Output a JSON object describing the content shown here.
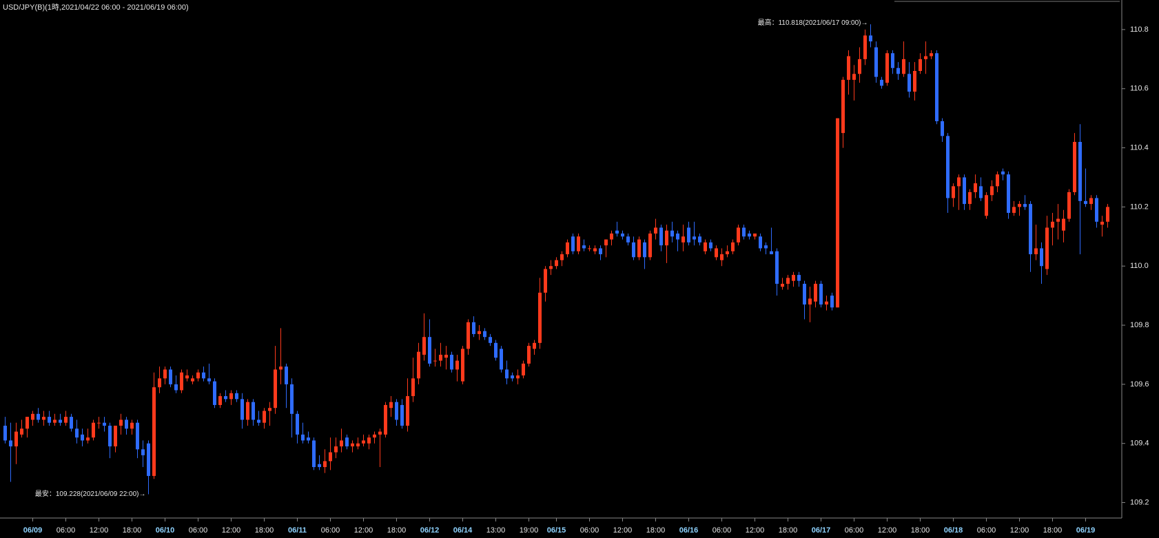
{
  "chart_data": {
    "type": "candlestick",
    "title": "USD/JPY(B)(1時,2021/04/22 06:00 - 2021/06/19 06:00)",
    "annotations": [
      "最高：110.818(2021/06/17 09:00)→",
      "最安：109.228(2021/06/09 22:00)→"
    ],
    "up_color": "#ff3a1c",
    "down_color": "#2f6cff",
    "ylim": [
      109.15,
      110.9
    ],
    "yticks": [
      109.2,
      109.4,
      109.6,
      109.8,
      {
        "value": 110,
        "label": "110.0"
      },
      110.2,
      110.4,
      110.6,
      110.8
    ],
    "categories": [
      null,
      null,
      null,
      null,
      null,
      "06/09",
      null,
      null,
      null,
      null,
      null,
      "06:00",
      null,
      null,
      null,
      null,
      null,
      "12:00",
      null,
      null,
      null,
      null,
      null,
      "18:00",
      null,
      null,
      null,
      null,
      null,
      "06/10",
      null,
      null,
      null,
      null,
      null,
      "06:00",
      null,
      null,
      null,
      null,
      null,
      "12:00",
      null,
      null,
      null,
      null,
      null,
      "18:00",
      null,
      null,
      null,
      null,
      null,
      "06/11",
      null,
      null,
      null,
      null,
      null,
      "06:00",
      null,
      null,
      null,
      null,
      null,
      "12:00",
      null,
      null,
      null,
      null,
      null,
      "18:00",
      null,
      null,
      null,
      null,
      null,
      "06/12",
      null,
      null,
      null,
      null,
      null,
      "06/14",
      null,
      null,
      null,
      null,
      null,
      "13:00",
      null,
      null,
      null,
      null,
      null,
      "19:00",
      null,
      null,
      null,
      null,
      "06/15",
      null,
      null,
      null,
      null,
      null,
      "06:00",
      null,
      null,
      null,
      null,
      null,
      "12:00",
      null,
      null,
      null,
      null,
      null,
      "18:00",
      null,
      null,
      null,
      null,
      null,
      "06/16",
      null,
      null,
      null,
      null,
      null,
      "06:00",
      null,
      null,
      null,
      null,
      null,
      "12:00",
      null,
      null,
      null,
      null,
      null,
      "18:00",
      null,
      null,
      null,
      null,
      null,
      "06/17",
      null,
      null,
      null,
      null,
      null,
      "06:00",
      null,
      null,
      null,
      null,
      null,
      "12:00",
      null,
      null,
      null,
      null,
      null,
      "18:00",
      null,
      null,
      null,
      null,
      null,
      "06/18",
      null,
      null,
      null,
      null,
      null,
      "06:00",
      null,
      null,
      null,
      null,
      null,
      "12:00",
      null,
      null,
      null,
      null,
      null,
      "18:00",
      null,
      null,
      null,
      null,
      null,
      "06/19",
      null,
      null,
      null,
      null
    ],
    "candles": [
      [
        109.46,
        109.49,
        109.4,
        109.41
      ],
      [
        109.41,
        109.47,
        109.27,
        109.39
      ],
      [
        109.39,
        109.47,
        109.33,
        109.44
      ],
      [
        109.43,
        109.48,
        109.42,
        109.45
      ],
      [
        109.45,
        109.49,
        109.42,
        109.49
      ],
      [
        109.48,
        109.51,
        109.46,
        109.5
      ],
      [
        109.5,
        109.52,
        109.47,
        109.48
      ],
      [
        109.48,
        109.51,
        109.46,
        109.49
      ],
      [
        109.49,
        109.51,
        109.46,
        109.47
      ],
      [
        109.47,
        109.5,
        109.46,
        109.48
      ],
      [
        109.48,
        109.5,
        109.46,
        109.47
      ],
      [
        109.47,
        109.51,
        109.46,
        109.49
      ],
      [
        109.49,
        109.5,
        109.44,
        109.45
      ],
      [
        109.45,
        109.48,
        109.4,
        109.42
      ],
      [
        109.43,
        109.45,
        109.39,
        109.41
      ],
      [
        109.41,
        109.45,
        109.4,
        109.42
      ],
      [
        109.42,
        109.48,
        109.41,
        109.47
      ],
      [
        109.47,
        109.49,
        109.45,
        109.47
      ],
      [
        109.47,
        109.49,
        109.44,
        109.46
      ],
      [
        109.46,
        109.47,
        109.35,
        109.39
      ],
      [
        109.39,
        109.46,
        109.37,
        109.46
      ],
      [
        109.46,
        109.5,
        109.43,
        109.48
      ],
      [
        109.48,
        109.49,
        109.43,
        109.45
      ],
      [
        109.45,
        109.48,
        109.43,
        109.47
      ],
      [
        109.47,
        109.48,
        109.35,
        109.38
      ],
      [
        109.38,
        109.41,
        109.32,
        109.36
      ],
      [
        109.4,
        109.41,
        109.228,
        109.29
      ],
      [
        109.29,
        109.64,
        109.28,
        109.59
      ],
      [
        109.59,
        109.66,
        109.57,
        109.62
      ],
      [
        109.62,
        109.66,
        109.6,
        109.65
      ],
      [
        109.65,
        109.66,
        109.59,
        109.6
      ],
      [
        109.6,
        109.63,
        109.57,
        109.58
      ],
      [
        109.58,
        109.65,
        109.57,
        109.64
      ],
      [
        109.62,
        109.65,
        109.61,
        109.63
      ],
      [
        109.61,
        109.63,
        109.6,
        109.62
      ],
      [
        109.62,
        109.65,
        109.61,
        109.64
      ],
      [
        109.64,
        109.66,
        109.61,
        109.62
      ],
      [
        109.62,
        109.67,
        109.6,
        109.61
      ],
      [
        109.61,
        109.62,
        109.52,
        109.53
      ],
      [
        109.53,
        109.57,
        109.52,
        109.56
      ],
      [
        109.56,
        109.58,
        109.54,
        109.55
      ],
      [
        109.55,
        109.58,
        109.53,
        109.57
      ],
      [
        109.57,
        109.58,
        109.54,
        109.55
      ],
      [
        109.55,
        109.57,
        109.45,
        109.48
      ],
      [
        109.48,
        109.55,
        109.46,
        109.54
      ],
      [
        109.54,
        109.55,
        109.46,
        109.48
      ],
      [
        109.48,
        109.51,
        109.46,
        109.47
      ],
      [
        109.47,
        109.52,
        109.45,
        109.51
      ],
      [
        109.51,
        109.54,
        109.46,
        109.52
      ],
      [
        109.52,
        109.73,
        109.5,
        109.65
      ],
      [
        109.65,
        109.79,
        109.6,
        109.66
      ],
      [
        109.66,
        109.67,
        109.52,
        109.6
      ],
      [
        109.6,
        109.62,
        109.42,
        109.5
      ],
      [
        109.5,
        109.51,
        109.4,
        109.43
      ],
      [
        109.43,
        109.47,
        109.4,
        109.41
      ],
      [
        109.42,
        109.44,
        109.4,
        109.41
      ],
      [
        109.41,
        109.42,
        109.31,
        109.32
      ],
      [
        109.33,
        109.36,
        109.31,
        109.32
      ],
      [
        109.32,
        109.38,
        109.3,
        109.34
      ],
      [
        109.34,
        109.42,
        109.31,
        109.37
      ],
      [
        109.37,
        109.42,
        109.35,
        109.39
      ],
      [
        109.39,
        109.45,
        109.37,
        109.41
      ],
      [
        109.42,
        109.43,
        109.38,
        109.39
      ],
      [
        109.39,
        109.41,
        109.37,
        109.4
      ],
      [
        109.39,
        109.42,
        109.38,
        109.4
      ],
      [
        109.4,
        109.43,
        109.39,
        109.41
      ],
      [
        109.4,
        109.43,
        109.38,
        109.42
      ],
      [
        109.42,
        109.44,
        109.4,
        109.43
      ],
      [
        109.43,
        109.45,
        109.32,
        109.44
      ],
      [
        109.43,
        109.54,
        109.42,
        109.53
      ],
      [
        109.52,
        109.56,
        109.49,
        109.54
      ],
      [
        109.54,
        109.55,
        109.46,
        109.48
      ],
      [
        109.53,
        109.55,
        109.45,
        109.46
      ],
      [
        109.46,
        109.62,
        109.44,
        109.56
      ],
      [
        109.56,
        109.69,
        109.54,
        109.62
      ],
      [
        109.62,
        109.74,
        109.6,
        109.71
      ],
      [
        109.7,
        109.84,
        109.68,
        109.76
      ],
      [
        109.76,
        109.82,
        109.66,
        109.67
      ],
      [
        109.68,
        109.72,
        109.66,
        109.68
      ],
      [
        109.68,
        109.74,
        109.66,
        109.7
      ],
      [
        109.69,
        109.73,
        109.65,
        109.7
      ],
      [
        109.7,
        109.71,
        109.64,
        109.65
      ],
      [
        109.65,
        109.7,
        109.61,
        109.68
      ],
      [
        109.61,
        109.73,
        109.6,
        109.72
      ],
      [
        109.72,
        109.82,
        109.7,
        109.81
      ],
      [
        109.81,
        109.83,
        109.76,
        109.77
      ],
      [
        109.77,
        109.8,
        109.75,
        109.78
      ],
      [
        109.78,
        109.79,
        109.75,
        109.76
      ],
      [
        109.76,
        109.77,
        109.73,
        109.74
      ],
      [
        109.74,
        109.75,
        109.68,
        109.69
      ],
      [
        109.72,
        109.73,
        109.64,
        109.65
      ],
      [
        109.65,
        109.68,
        109.6,
        109.62
      ],
      [
        109.63,
        109.64,
        109.61,
        109.62
      ],
      [
        109.62,
        109.65,
        109.6,
        109.63
      ],
      [
        109.63,
        109.68,
        109.62,
        109.67
      ],
      [
        109.67,
        109.74,
        109.66,
        109.73
      ],
      [
        109.72,
        109.75,
        109.7,
        109.74
      ],
      [
        109.74,
        109.96,
        109.72,
        109.91
      ],
      [
        109.91,
        110.0,
        109.88,
        109.99
      ],
      [
        109.99,
        110.02,
        109.97,
        110.0
      ],
      [
        110.0,
        110.03,
        109.99,
        110.02
      ],
      [
        110.02,
        110.05,
        110.0,
        110.04
      ],
      [
        110.04,
        110.09,
        110.03,
        110.08
      ],
      [
        110.1,
        110.11,
        110.04,
        110.05
      ],
      [
        110.05,
        110.11,
        110.04,
        110.1
      ],
      [
        110.07,
        110.09,
        110.05,
        110.06
      ],
      [
        110.06,
        110.07,
        110.05,
        110.06
      ],
      [
        110.05,
        110.07,
        110.04,
        110.06
      ],
      [
        110.06,
        110.07,
        110.02,
        110.04
      ],
      [
        110.07,
        110.09,
        110.03,
        110.09
      ],
      [
        110.09,
        110.12,
        110.07,
        110.11
      ],
      [
        110.12,
        110.15,
        110.1,
        110.11
      ],
      [
        110.11,
        110.12,
        110.09,
        110.1
      ],
      [
        110.1,
        110.11,
        110.07,
        110.08
      ],
      [
        110.08,
        110.1,
        110.02,
        110.03
      ],
      [
        110.03,
        110.1,
        110.02,
        110.09
      ],
      [
        110.08,
        110.09,
        109.99,
        110.03
      ],
      [
        110.03,
        110.12,
        110.02,
        110.11
      ],
      [
        110.11,
        110.16,
        110.09,
        110.13
      ],
      [
        110.13,
        110.14,
        110.05,
        110.07
      ],
      [
        110.07,
        110.14,
        110.01,
        110.12
      ],
      [
        110.12,
        110.15,
        110.08,
        110.1
      ],
      [
        110.11,
        110.12,
        110.05,
        110.09
      ],
      [
        110.08,
        110.14,
        110.05,
        110.1
      ],
      [
        110.13,
        110.15,
        110.07,
        110.08
      ],
      [
        110.1,
        110.15,
        110.07,
        110.09
      ],
      [
        110.1,
        110.11,
        110.07,
        110.08
      ],
      [
        110.05,
        110.09,
        110.04,
        110.08
      ],
      [
        110.08,
        110.09,
        110.05,
        110.06
      ],
      [
        110.03,
        110.07,
        110.02,
        110.06
      ],
      [
        110.02,
        110.06,
        110.0,
        110.04
      ],
      [
        110.04,
        110.07,
        110.03,
        110.05
      ],
      [
        110.05,
        110.09,
        110.04,
        110.08
      ],
      [
        110.08,
        110.14,
        110.07,
        110.13
      ],
      [
        110.13,
        110.14,
        110.09,
        110.1
      ],
      [
        110.11,
        110.12,
        110.09,
        110.1
      ],
      [
        110.1,
        110.11,
        110.09,
        110.11
      ],
      [
        110.1,
        110.11,
        110.05,
        110.06
      ],
      [
        110.07,
        110.08,
        110.04,
        110.06
      ],
      [
        110.05,
        110.13,
        110.04,
        110.04
      ],
      [
        110.05,
        110.06,
        109.9,
        109.94
      ],
      [
        109.93,
        109.96,
        109.92,
        109.94
      ],
      [
        109.94,
        109.97,
        109.92,
        109.96
      ],
      [
        109.95,
        109.98,
        109.93,
        109.97
      ],
      [
        109.97,
        109.98,
        109.93,
        109.95
      ],
      [
        109.94,
        109.95,
        109.82,
        109.87
      ],
      [
        109.87,
        109.93,
        109.81,
        109.89
      ],
      [
        109.88,
        109.95,
        109.86,
        109.94
      ],
      [
        109.94,
        109.95,
        109.86,
        109.87
      ],
      [
        109.87,
        109.9,
        109.85,
        109.88
      ],
      [
        109.9,
        109.91,
        109.85,
        109.86
      ],
      [
        109.86,
        110.5,
        109.86,
        110.5
      ],
      [
        110.45,
        110.64,
        110.4,
        110.63
      ],
      [
        110.63,
        110.73,
        110.58,
        110.71
      ],
      [
        110.63,
        110.68,
        110.56,
        110.65
      ],
      [
        110.65,
        110.74,
        110.62,
        110.7
      ],
      [
        110.7,
        110.8,
        110.68,
        110.78
      ],
      [
        110.78,
        110.818,
        110.74,
        110.76
      ],
      [
        110.74,
        110.76,
        110.62,
        110.64
      ],
      [
        110.63,
        110.64,
        110.6,
        110.61
      ],
      [
        110.62,
        110.73,
        110.61,
        110.72
      ],
      [
        110.72,
        110.73,
        110.65,
        110.67
      ],
      [
        110.67,
        110.69,
        110.63,
        110.65
      ],
      [
        110.65,
        110.76,
        110.64,
        110.7
      ],
      [
        110.65,
        110.69,
        110.57,
        110.59
      ],
      [
        110.59,
        110.69,
        110.56,
        110.66
      ],
      [
        110.66,
        110.72,
        110.65,
        110.7
      ],
      [
        110.7,
        110.76,
        110.65,
        110.71
      ],
      [
        110.71,
        110.73,
        110.7,
        110.72
      ],
      [
        110.72,
        110.73,
        110.48,
        110.49
      ],
      [
        110.49,
        110.5,
        110.42,
        110.44
      ],
      [
        110.44,
        110.45,
        110.18,
        110.23
      ],
      [
        110.23,
        110.28,
        110.2,
        110.27
      ],
      [
        110.27,
        110.31,
        110.19,
        110.3
      ],
      [
        110.3,
        110.31,
        110.19,
        110.21
      ],
      [
        110.21,
        110.26,
        110.19,
        110.25
      ],
      [
        110.25,
        110.31,
        110.23,
        110.28
      ],
      [
        110.27,
        110.3,
        110.22,
        110.23
      ],
      [
        110.17,
        110.25,
        110.16,
        110.24
      ],
      [
        110.24,
        110.29,
        110.22,
        110.27
      ],
      [
        110.27,
        110.32,
        110.25,
        110.31
      ],
      [
        110.32,
        110.33,
        110.29,
        110.31
      ],
      [
        110.31,
        110.32,
        110.16,
        110.18
      ],
      [
        110.18,
        110.22,
        110.17,
        110.2
      ],
      [
        110.2,
        110.22,
        110.17,
        110.21
      ],
      [
        110.21,
        110.24,
        110.19,
        110.2
      ],
      [
        110.21,
        110.22,
        109.98,
        110.04
      ],
      [
        110.04,
        110.14,
        110.02,
        110.06
      ],
      [
        110.06,
        110.08,
        109.94,
        110.0
      ],
      [
        109.99,
        110.17,
        109.97,
        110.13
      ],
      [
        110.13,
        110.18,
        110.07,
        110.15
      ],
      [
        110.15,
        110.21,
        110.09,
        110.16
      ],
      [
        110.12,
        110.19,
        110.08,
        110.16
      ],
      [
        110.16,
        110.26,
        110.15,
        110.25
      ],
      [
        110.25,
        110.45,
        110.24,
        110.42
      ],
      [
        110.42,
        110.48,
        110.04,
        110.22
      ],
      [
        110.22,
        110.33,
        110.2,
        110.21
      ],
      [
        110.21,
        110.24,
        110.19,
        110.23
      ],
      [
        110.23,
        110.24,
        110.13,
        110.15
      ],
      [
        110.14,
        110.17,
        110.1,
        110.15
      ],
      [
        110.15,
        110.21,
        110.13,
        110.2
      ]
    ]
  }
}
